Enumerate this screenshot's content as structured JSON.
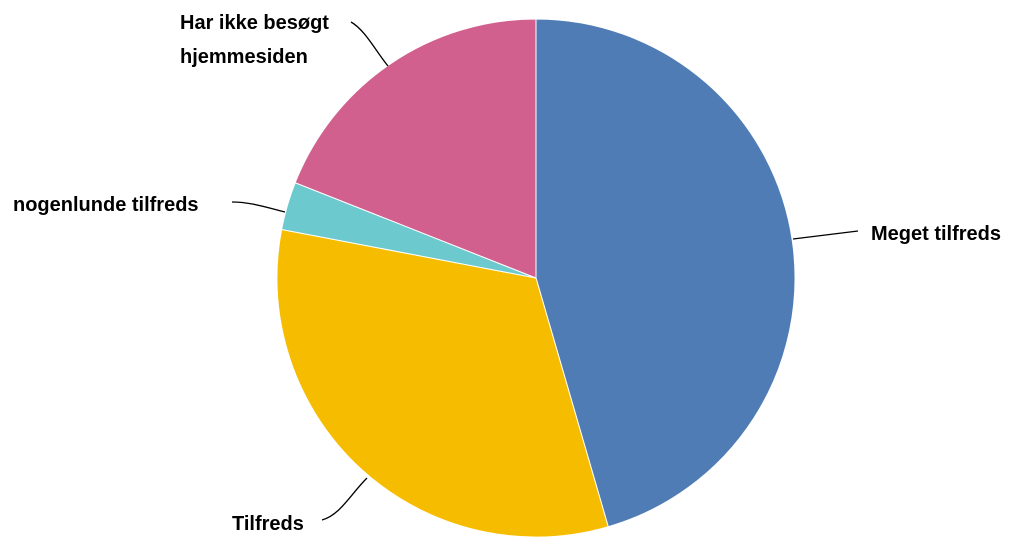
{
  "chart_data": {
    "type": "pie",
    "title": "",
    "slices": [
      {
        "label": "Meget tilfreds",
        "value": 45.5,
        "color": "#4f7cb5"
      },
      {
        "label": "Tilfreds",
        "value": 32.5,
        "color": "#f6bd00"
      },
      {
        "label": "nogenlunde tilfreds",
        "value": 3.0,
        "color": "#6ccacf"
      },
      {
        "label": "Har ikke besøgt hjemmesiden",
        "value": 19.0,
        "color": "#d2608e"
      }
    ],
    "start_angle": "12 o'clock",
    "direction": "clockwise",
    "legend": "none",
    "data_labels": "category names with leader lines"
  }
}
